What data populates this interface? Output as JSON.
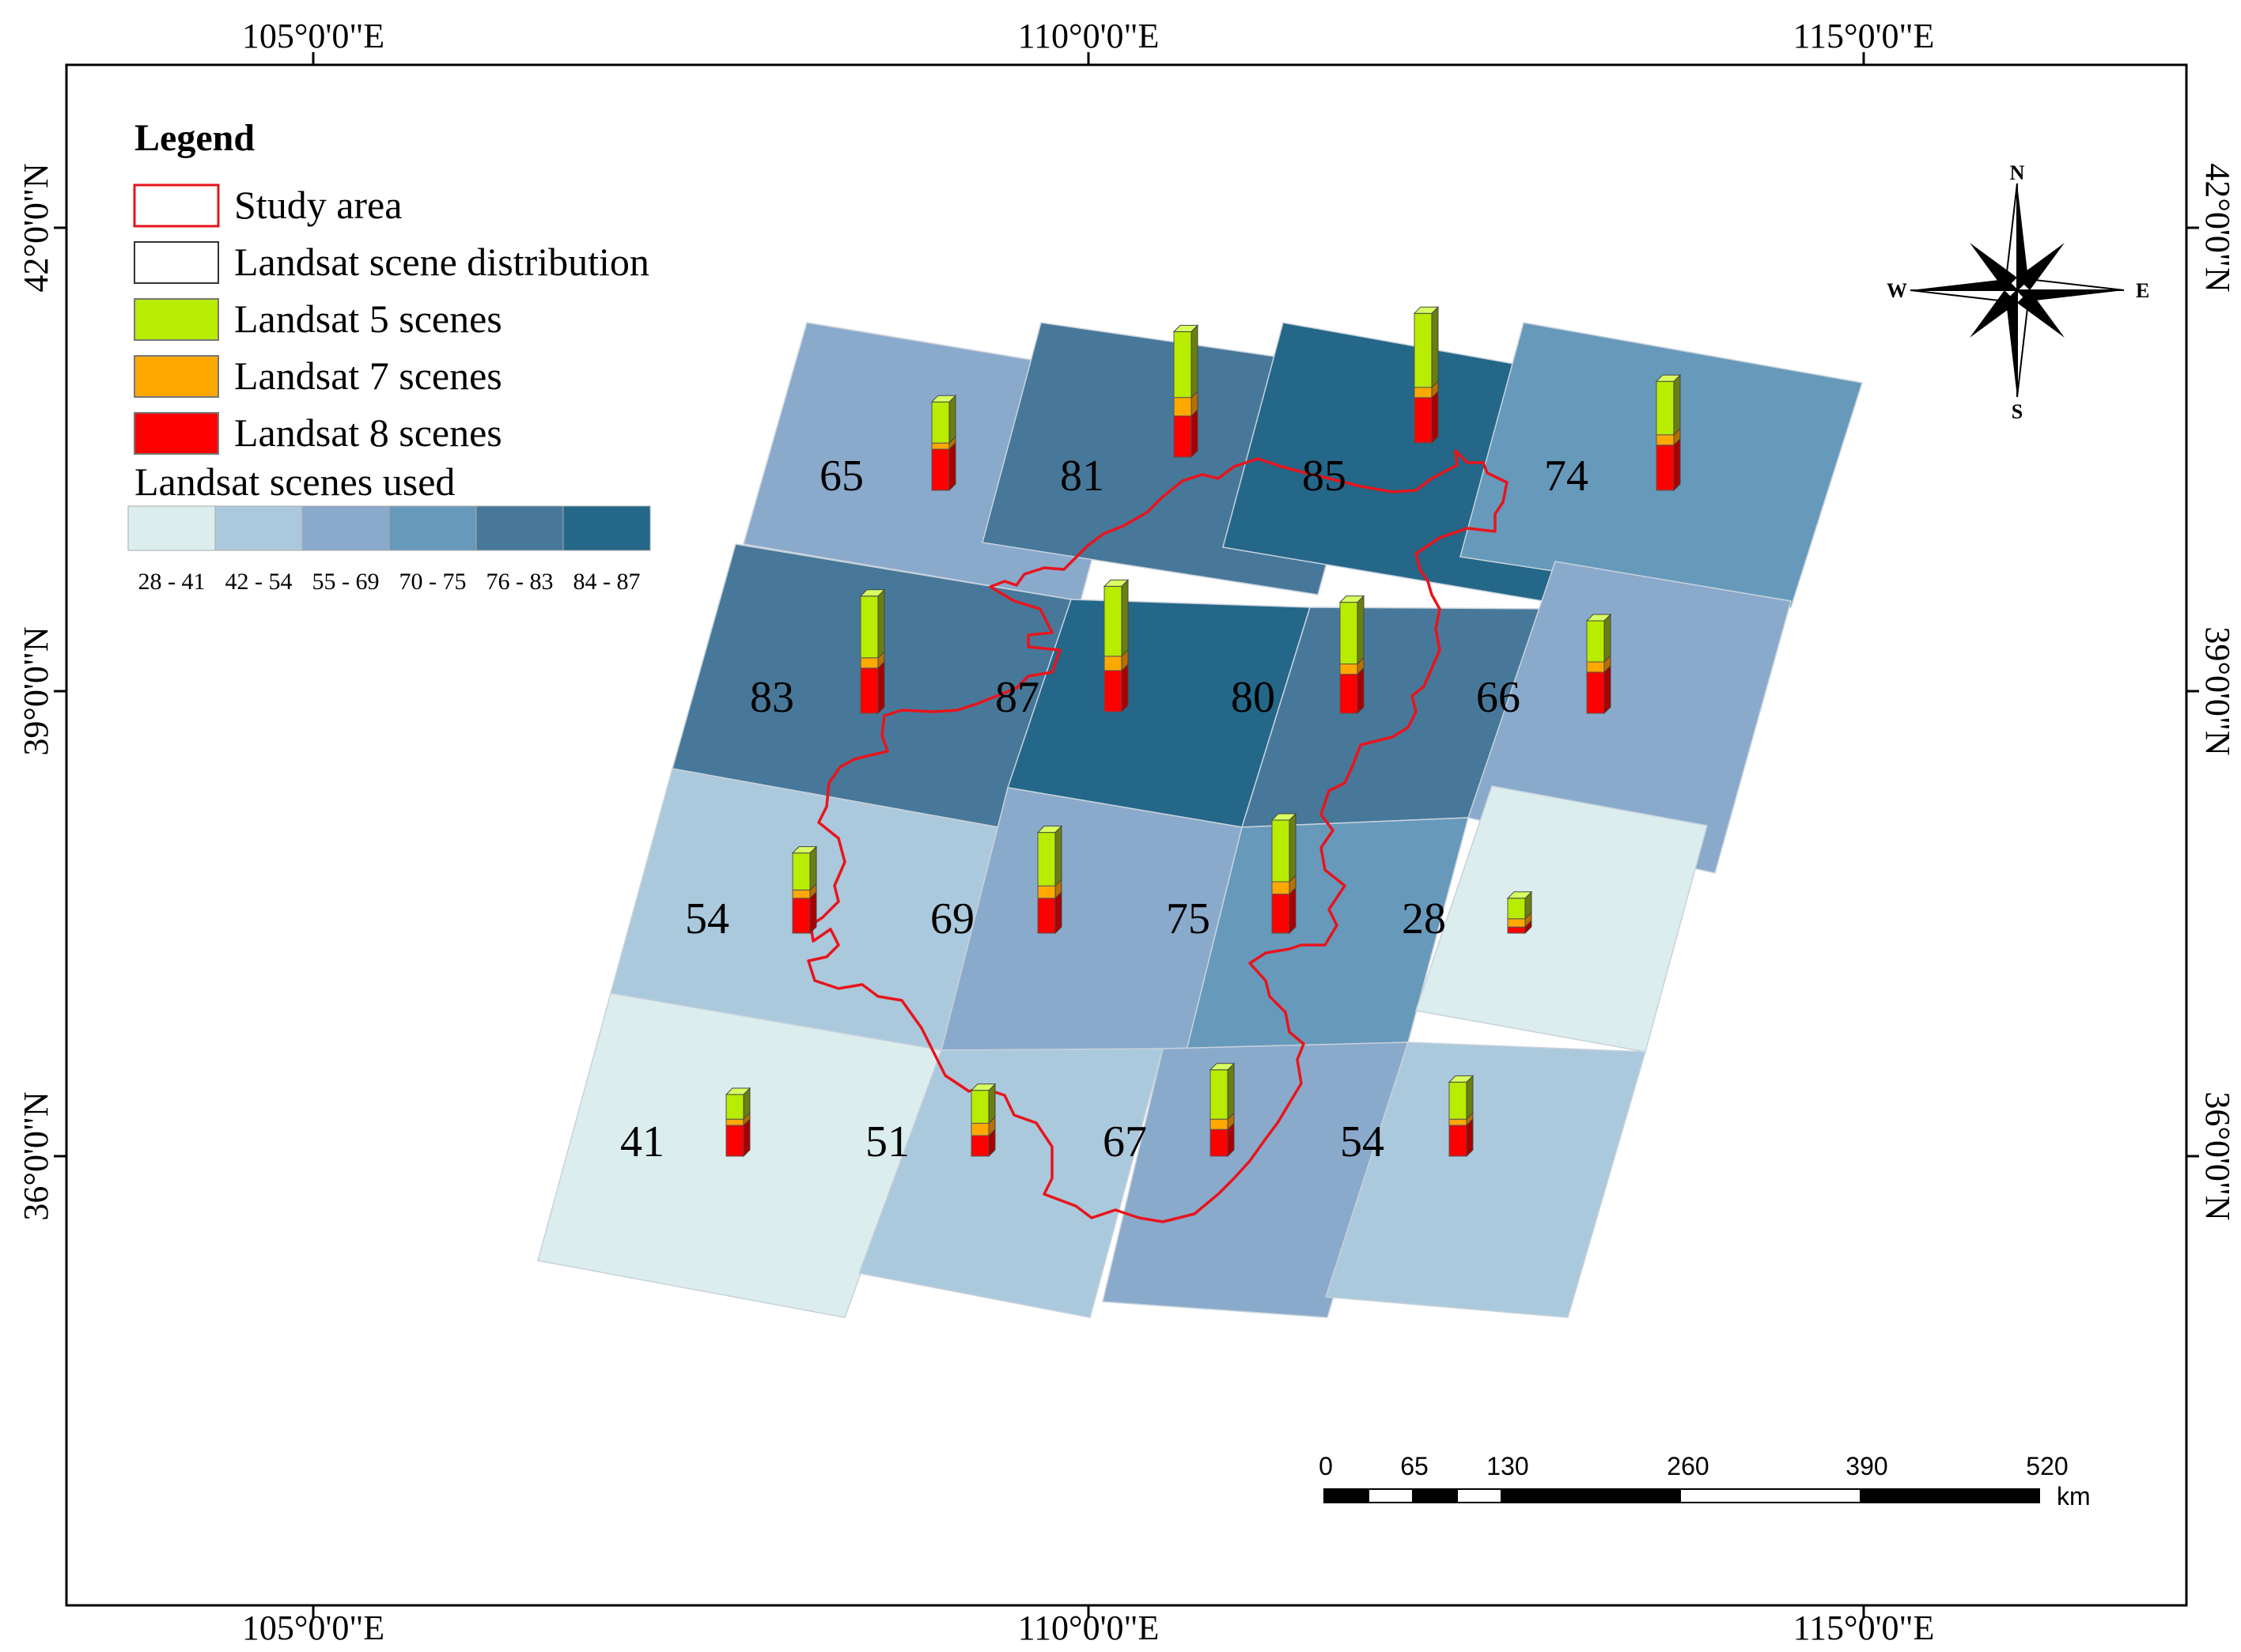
{
  "graticule": {
    "top_labels": [
      "105°0'0\"E",
      "110°0'0\"E",
      "115°0'0\"E"
    ],
    "bottom_labels": [
      "105°0'0\"E",
      "110°0'0\"E",
      "115°0'0\"E"
    ],
    "left_labels": [
      "42°0'0\"N",
      "39°0'0\"N",
      "36°0'0\"N"
    ],
    "right_labels": [
      "42°0'0\"N",
      "39°0'0\"N",
      "36°0'0\"N"
    ]
  },
  "legend": {
    "title": "Legend",
    "items": [
      {
        "label": "Study area",
        "symbol": "outline",
        "color": "#e8141c"
      },
      {
        "label": "Landsat scene distribution",
        "symbol": "outline",
        "color": "#333333"
      },
      {
        "label": "Landsat 5 scenes",
        "symbol": "fill",
        "color": "#b8ec00"
      },
      {
        "label": "Landsat 7 scenes",
        "symbol": "fill",
        "color": "#ffa800"
      },
      {
        "label": "Landsat 8 scenes",
        "symbol": "fill",
        "color": "#ff0000"
      }
    ],
    "ramp_title": "Landsat scenes used",
    "ramp_classes": [
      {
        "label": "28 - 41",
        "color": "#dcedee"
      },
      {
        "label": "42 - 54",
        "color": "#abc9dc"
      },
      {
        "label": "55 - 69",
        "color": "#8aaacc"
      },
      {
        "label": "70 - 75",
        "color": "#6799bb"
      },
      {
        "label": "76 - 83",
        "color": "#477899"
      },
      {
        "label": "84 - 87",
        "color": "#246788"
      }
    ]
  },
  "compass": {
    "n": "N",
    "s": "S",
    "e": "E",
    "w": "W"
  },
  "scale_bar": {
    "labels": [
      "0",
      "65",
      "130",
      "260",
      "390",
      "520"
    ],
    "unit": "km"
  },
  "scenes": [
    {
      "count": 65,
      "l5": 1.0,
      "l7": 0.15,
      "l8": 1.0
    },
    {
      "count": 81,
      "l5": 1.6,
      "l7": 0.45,
      "l8": 1.0
    },
    {
      "count": 85,
      "l5": 1.8,
      "l7": 0.25,
      "l8": 1.1
    },
    {
      "count": 74,
      "l5": 1.3,
      "l7": 0.25,
      "l8": 1.1
    },
    {
      "count": 83,
      "l5": 1.5,
      "l7": 0.25,
      "l8": 1.1
    },
    {
      "count": 87,
      "l5": 1.7,
      "l7": 0.35,
      "l8": 1.0
    },
    {
      "count": 80,
      "l5": 1.5,
      "l7": 0.25,
      "l8": 0.95
    },
    {
      "count": 66,
      "l5": 1.0,
      "l7": 0.25,
      "l8": 1.0
    },
    {
      "count": 54,
      "l5": 0.9,
      "l7": 0.2,
      "l8": 0.85
    },
    {
      "count": 69,
      "l5": 1.3,
      "l7": 0.3,
      "l8": 0.85
    },
    {
      "count": 75,
      "l5": 1.5,
      "l7": 0.3,
      "l8": 0.95
    },
    {
      "count": 28,
      "l5": 0.5,
      "l7": 0.2,
      "l8": 0.15
    },
    {
      "count": 41,
      "l5": 0.6,
      "l7": 0.15,
      "l8": 0.75
    },
    {
      "count": 51,
      "l5": 0.8,
      "l7": 0.3,
      "l8": 0.5
    },
    {
      "count": 67,
      "l5": 1.2,
      "l7": 0.25,
      "l8": 0.65
    },
    {
      "count": 54,
      "l5": 0.9,
      "l7": 0.15,
      "l8": 0.75
    }
  ]
}
